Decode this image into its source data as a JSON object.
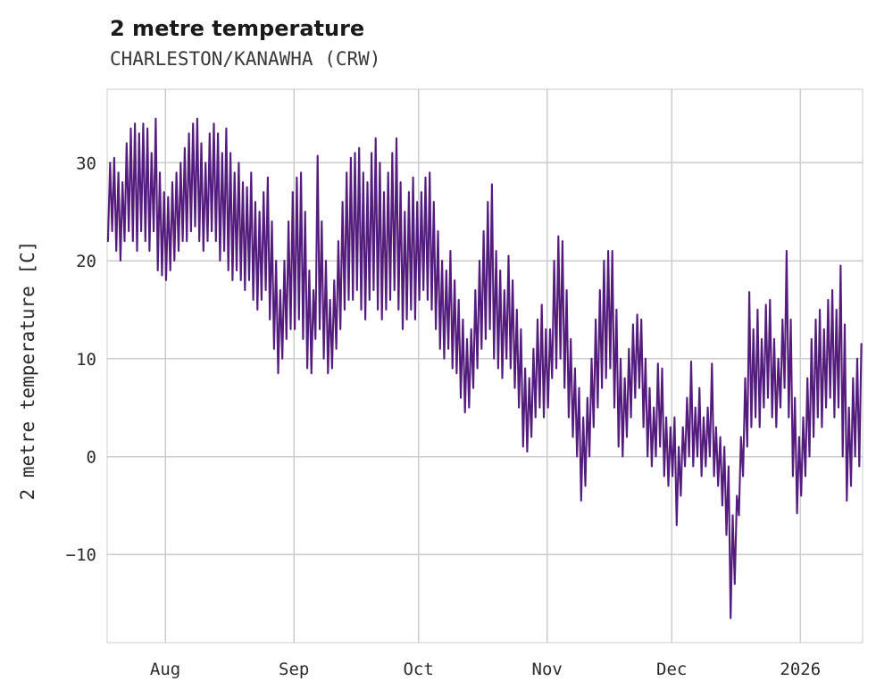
{
  "header": {
    "title": "2 metre temperature",
    "subtitle": "CHARLESTON/KANAWHA (CRW)"
  },
  "chart_data": {
    "type": "line",
    "title": "2 metre temperature",
    "subtitle": "CHARLESTON/KANAWHA (CRW)",
    "xlabel": "",
    "ylabel": "2 metre temperature [C]",
    "line_color": "#541c7c",
    "grid_color": "#cccccc",
    "background": "#ffffff",
    "grid": true,
    "legend": "none",
    "xlim": [
      0,
      182
    ],
    "ylim": [
      -19,
      37.5
    ],
    "x_description": "days from mid-July 2025 to mid-January 2026, two samples per day (daily min, daily max)",
    "xticks": [
      {
        "pos": 14,
        "label": "Aug"
      },
      {
        "pos": 45,
        "label": "Sep"
      },
      {
        "pos": 75,
        "label": "Oct"
      },
      {
        "pos": 106,
        "label": "Nov"
      },
      {
        "pos": 136,
        "label": "Dec"
      },
      {
        "pos": 167,
        "label": "2026"
      }
    ],
    "yticks": [
      {
        "pos": -10,
        "label": "−10"
      },
      {
        "pos": 0,
        "label": "0"
      },
      {
        "pos": 10,
        "label": "10"
      },
      {
        "pos": 20,
        "label": "20"
      },
      {
        "pos": 30,
        "label": "30"
      }
    ],
    "series": [
      {
        "name": "2 metre temperature",
        "daily_min_max": [
          [
            22,
            30
          ],
          [
            23,
            30.5
          ],
          [
            21,
            29
          ],
          [
            20,
            28
          ],
          [
            22,
            32
          ],
          [
            23,
            33.5
          ],
          [
            22,
            34
          ],
          [
            21,
            33
          ],
          [
            23,
            34
          ],
          [
            22,
            33.5
          ],
          [
            21,
            31
          ],
          [
            23,
            34.5
          ],
          [
            19,
            29
          ],
          [
            18.5,
            27
          ],
          [
            18,
            26.5
          ],
          [
            19,
            28
          ],
          [
            20,
            29
          ],
          [
            21,
            30
          ],
          [
            22,
            31.5
          ],
          [
            22,
            33
          ],
          [
            23,
            34
          ],
          [
            23.5,
            34.5
          ],
          [
            22,
            32
          ],
          [
            21,
            30
          ],
          [
            22,
            33
          ],
          [
            23,
            34
          ],
          [
            22,
            33
          ],
          [
            20,
            31
          ],
          [
            21,
            33.5
          ],
          [
            19,
            31
          ],
          [
            18,
            29
          ],
          [
            19,
            30
          ],
          [
            18,
            28
          ],
          [
            17,
            27.5
          ],
          [
            18,
            29
          ],
          [
            16,
            26
          ],
          [
            15,
            25
          ],
          [
            16,
            27
          ],
          [
            17,
            28.5
          ],
          [
            14,
            24
          ],
          [
            11,
            20
          ],
          [
            8.5,
            17
          ],
          [
            10,
            20
          ],
          [
            12,
            24
          ],
          [
            13,
            27
          ],
          [
            13,
            28.5
          ],
          [
            14,
            29
          ],
          [
            12,
            25
          ],
          [
            9,
            19
          ],
          [
            8.5,
            17
          ],
          [
            12,
            30.7
          ],
          [
            13,
            24
          ],
          [
            10,
            20
          ],
          [
            8.5,
            16
          ],
          [
            9,
            18
          ],
          [
            11,
            22
          ],
          [
            13,
            26
          ],
          [
            15,
            29
          ],
          [
            16,
            30.5
          ],
          [
            16,
            31
          ],
          [
            17,
            31.5
          ],
          [
            15,
            29
          ],
          [
            14,
            28
          ],
          [
            16,
            31
          ],
          [
            17,
            32.5
          ],
          [
            15,
            30
          ],
          [
            14,
            27
          ],
          [
            15,
            29
          ],
          [
            16,
            31
          ],
          [
            17,
            32.5
          ],
          [
            15,
            28
          ],
          [
            13,
            25
          ],
          [
            14,
            27
          ],
          [
            15,
            28.5
          ],
          [
            14,
            26
          ],
          [
            16,
            27
          ],
          [
            17,
            28.5
          ],
          [
            16,
            29
          ],
          [
            15,
            26
          ],
          [
            13,
            23
          ],
          [
            11,
            20
          ],
          [
            10,
            19
          ],
          [
            11,
            21
          ],
          [
            9,
            18
          ],
          [
            8.5,
            16
          ],
          [
            6,
            14
          ],
          [
            4.5,
            12
          ],
          [
            5,
            13
          ],
          [
            7,
            17
          ],
          [
            9,
            20
          ],
          [
            11,
            23
          ],
          [
            12,
            26
          ],
          [
            13,
            27.8
          ],
          [
            10,
            21
          ],
          [
            9,
            19
          ],
          [
            8,
            17
          ],
          [
            10,
            20.5
          ],
          [
            9,
            18
          ],
          [
            7,
            15
          ],
          [
            5,
            13
          ],
          [
            1,
            9
          ],
          [
            0.5,
            8
          ],
          [
            2,
            11
          ],
          [
            4,
            14
          ],
          [
            5,
            15.5
          ],
          [
            4,
            13
          ],
          [
            5,
            13
          ],
          [
            8,
            20
          ],
          [
            9,
            22.5
          ],
          [
            10,
            22
          ],
          [
            7,
            17
          ],
          [
            4,
            12
          ],
          [
            2,
            9
          ],
          [
            0,
            7
          ],
          [
            -4.5,
            4
          ],
          [
            -3,
            6
          ],
          [
            0,
            10
          ],
          [
            3,
            14
          ],
          [
            5,
            17
          ],
          [
            7,
            20
          ],
          [
            8,
            21
          ],
          [
            9,
            21
          ],
          [
            5,
            15
          ],
          [
            1,
            10
          ],
          [
            0,
            8
          ],
          [
            2,
            11
          ],
          [
            4,
            13.5
          ],
          [
            6,
            14.5
          ],
          [
            7,
            14
          ],
          [
            3,
            10
          ],
          [
            0,
            7
          ],
          [
            -1,
            5
          ],
          [
            0,
            9.5
          ],
          [
            1,
            9
          ],
          [
            -2,
            4
          ],
          [
            -3,
            3
          ],
          [
            -2,
            4
          ],
          [
            -7,
            1
          ],
          [
            -4,
            3
          ],
          [
            -1,
            6
          ],
          [
            0,
            9.7
          ],
          [
            -1,
            5
          ],
          [
            0,
            7
          ],
          [
            -2,
            4
          ],
          [
            -1,
            5
          ],
          [
            0,
            9.5
          ],
          [
            -2,
            3
          ],
          [
            -3,
            2
          ],
          [
            -5,
            1
          ],
          [
            -8,
            -1
          ],
          [
            -16.5,
            -6
          ],
          [
            -13,
            -4
          ],
          [
            -6,
            2
          ],
          [
            -2,
            8
          ],
          [
            1,
            16.8
          ],
          [
            3,
            13
          ],
          [
            4,
            15
          ],
          [
            3,
            12
          ],
          [
            5,
            15.5
          ],
          [
            6,
            16
          ],
          [
            4,
            12
          ],
          [
            3,
            10
          ],
          [
            5,
            14
          ],
          [
            7,
            21
          ],
          [
            4,
            14
          ],
          [
            -2,
            6
          ],
          [
            -5.8,
            2
          ],
          [
            -4,
            4
          ],
          [
            -2,
            8
          ],
          [
            0,
            12
          ],
          [
            2,
            14
          ],
          [
            4,
            15
          ],
          [
            3,
            13
          ],
          [
            5,
            16
          ],
          [
            6,
            17
          ],
          [
            4,
            15
          ],
          [
            5,
            19.5
          ],
          [
            0,
            13.5
          ],
          [
            -4.5,
            5
          ],
          [
            -3,
            8
          ],
          [
            0,
            10
          ],
          [
            -1,
            11.5
          ]
        ]
      }
    ]
  }
}
